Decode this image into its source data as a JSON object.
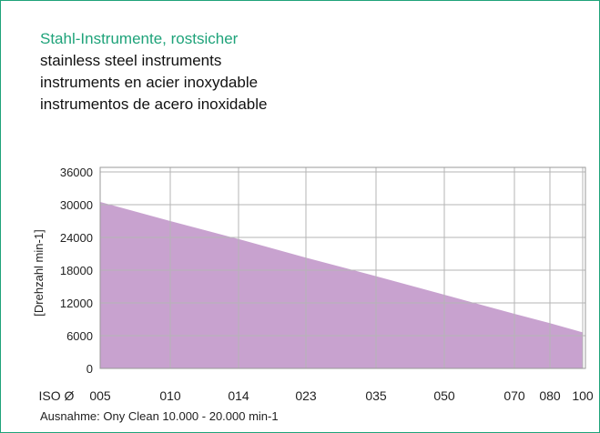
{
  "chart_data": {
    "type": "area",
    "heading": "Stahl-Instrumente, rostsicher",
    "subtitles": [
      "stainless steel instruments",
      "instruments en acier inoxydable",
      "instrumentos de acero inoxidable"
    ],
    "y_label": "[Drehzahl min-1]",
    "x_label": "ISO Ø",
    "categories": [
      "005",
      "010",
      "014",
      "023",
      "035",
      "050",
      "070",
      "080",
      "100"
    ],
    "values": [
      30500,
      27000,
      23700,
      20300,
      16900,
      13500,
      10000,
      8300,
      6600
    ],
    "color": "#c8a2cf",
    "ylim": [
      0,
      36000
    ],
    "yticks": [
      0,
      6000,
      12000,
      18000,
      24000,
      30000,
      36000
    ],
    "grid": true,
    "note": "Ausnahme: Ony Clean 10.000 - 20.000 min-1"
  }
}
